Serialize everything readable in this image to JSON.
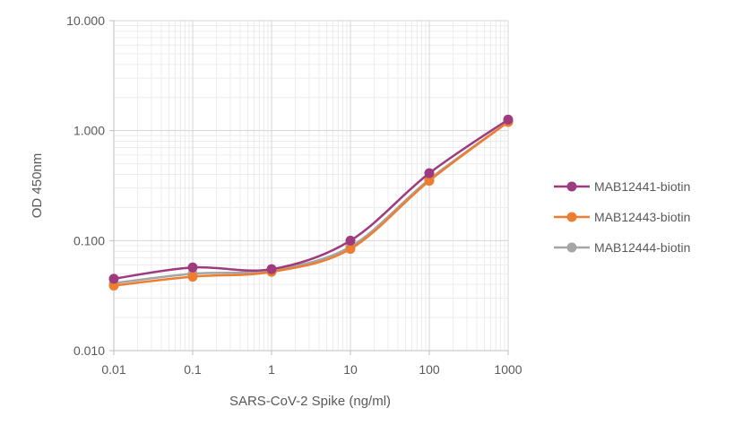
{
  "chart_data": {
    "type": "line",
    "x_scale": "log",
    "y_scale": "log",
    "xlabel": "SARS-CoV-2 Spike (ng/ml)",
    "ylabel": "OD 450nm",
    "x": [
      0.01,
      0.1,
      1,
      10,
      100,
      1000
    ],
    "x_tick_labels": [
      "0.01",
      "0.1",
      "1",
      "10",
      "100",
      "1000"
    ],
    "y_ticks": [
      0.01,
      0.1,
      1,
      10
    ],
    "y_tick_labels": [
      "0.010",
      "0.100",
      "1.000",
      "10.000"
    ],
    "xlim": [
      0.01,
      1000
    ],
    "ylim": [
      0.01,
      10
    ],
    "grid": true,
    "legend_position": "right",
    "series": [
      {
        "name": "MAB12441-biotin",
        "color": "#9E3A7E",
        "values": [
          0.045,
          0.057,
          0.055,
          0.1,
          0.41,
          1.26
        ]
      },
      {
        "name": "MAB12443-biotin",
        "color": "#ED7D31",
        "values": [
          0.039,
          0.047,
          0.052,
          0.084,
          0.35,
          1.2
        ]
      },
      {
        "name": "MAB12444-biotin",
        "color": "#A5A5A5",
        "values": [
          0.041,
          0.05,
          0.054,
          0.088,
          0.36,
          1.2
        ]
      }
    ]
  }
}
